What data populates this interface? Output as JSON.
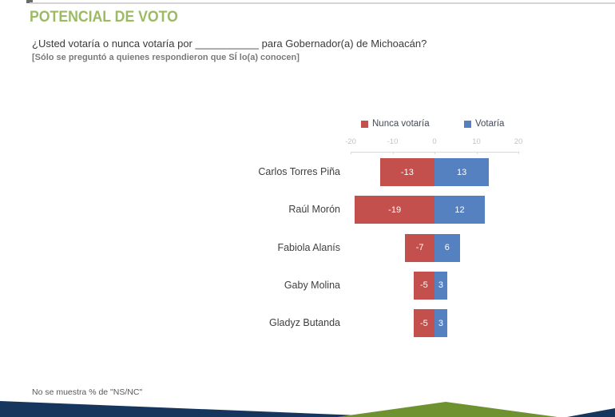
{
  "slide": {
    "title": "POTENCIAL DE VOTO",
    "question": "¿Usted votaría o nunca votaría por ___________ para Gobernador(a) de Michoacán?",
    "note": "[Sólo se preguntó a quienes respondieron que SÍ lo(a) conocen]",
    "footnote": "No se muestra % de \"NS/NC\""
  },
  "chart_data": {
    "type": "bar",
    "orientation": "horizontal-diverging",
    "title": "",
    "categories": [
      "Carlos Torres Piña",
      "Raúl Morón",
      "Fabiola Alanís",
      "Gaby Molina",
      "Gladyz Butanda"
    ],
    "series": [
      {
        "name": "Nunca votaría",
        "color": "#c4504d",
        "values": [
          -13,
          -19,
          -7,
          -5,
          -5
        ]
      },
      {
        "name": "Votaría",
        "color": "#5581c1",
        "values": [
          13,
          12,
          6,
          3,
          3
        ]
      }
    ],
    "xlim": [
      -20,
      20
    ],
    "xticks": [
      -20,
      -10,
      0,
      10,
      20
    ],
    "legend_position": "top",
    "grid": false,
    "value_labels": true
  },
  "colors": {
    "title_green": "#9cba63",
    "bar_red": "#c4504d",
    "bar_blue": "#5581c1",
    "navy": "#17365d",
    "hill_green": "#6f9230",
    "axis_label_gray": "#c3c3c3",
    "axis_line_gray": "#d9d9d9",
    "legend_text": "#40495a",
    "category_text": "#3f3f3f",
    "footnote_text": "#595959"
  }
}
